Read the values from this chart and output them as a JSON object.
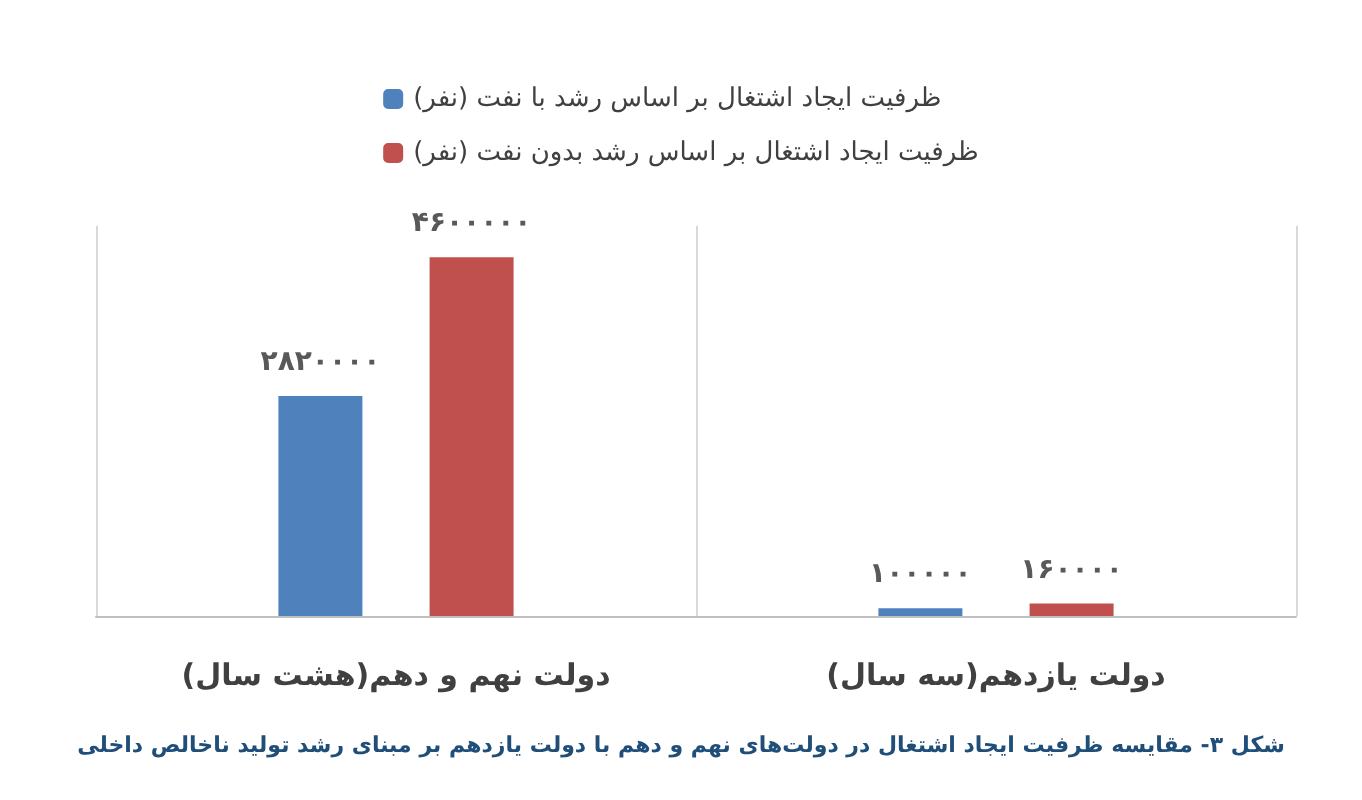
{
  "chart_data": {
    "type": "bar",
    "categories": [
      "دولت نهم و دهم(هشت سال)",
      "دولت یازدهم(سه سال)"
    ],
    "series": [
      {
        "name": "ظرفیت ایجاد اشتغال بر اساس رشد با نفت (نفر)",
        "color": "#4f81bd",
        "values": [
          2820000,
          100000
        ],
        "value_labels": [
          "۲۸۲۰۰۰۰",
          "۱۰۰۰۰۰"
        ]
      },
      {
        "name": "ظرفیت ایجاد اشتغال بر اساس رشد بدون نفت (نفر)",
        "color": "#c0504d",
        "values": [
          4600000,
          160000
        ],
        "value_labels": [
          "۴۶۰۰۰۰۰",
          "۱۶۰۰۰۰"
        ]
      }
    ],
    "legend": "top",
    "grid": "x",
    "tick_labels": "x",
    "annotations": [
      "شکل ۳- مقایسه ظرفیت ایجاد اشتغال در دولت‌های نهم و دهم با دولت یازدهم بر مبنای رشد تولید ناخالص داخلی"
    ]
  }
}
